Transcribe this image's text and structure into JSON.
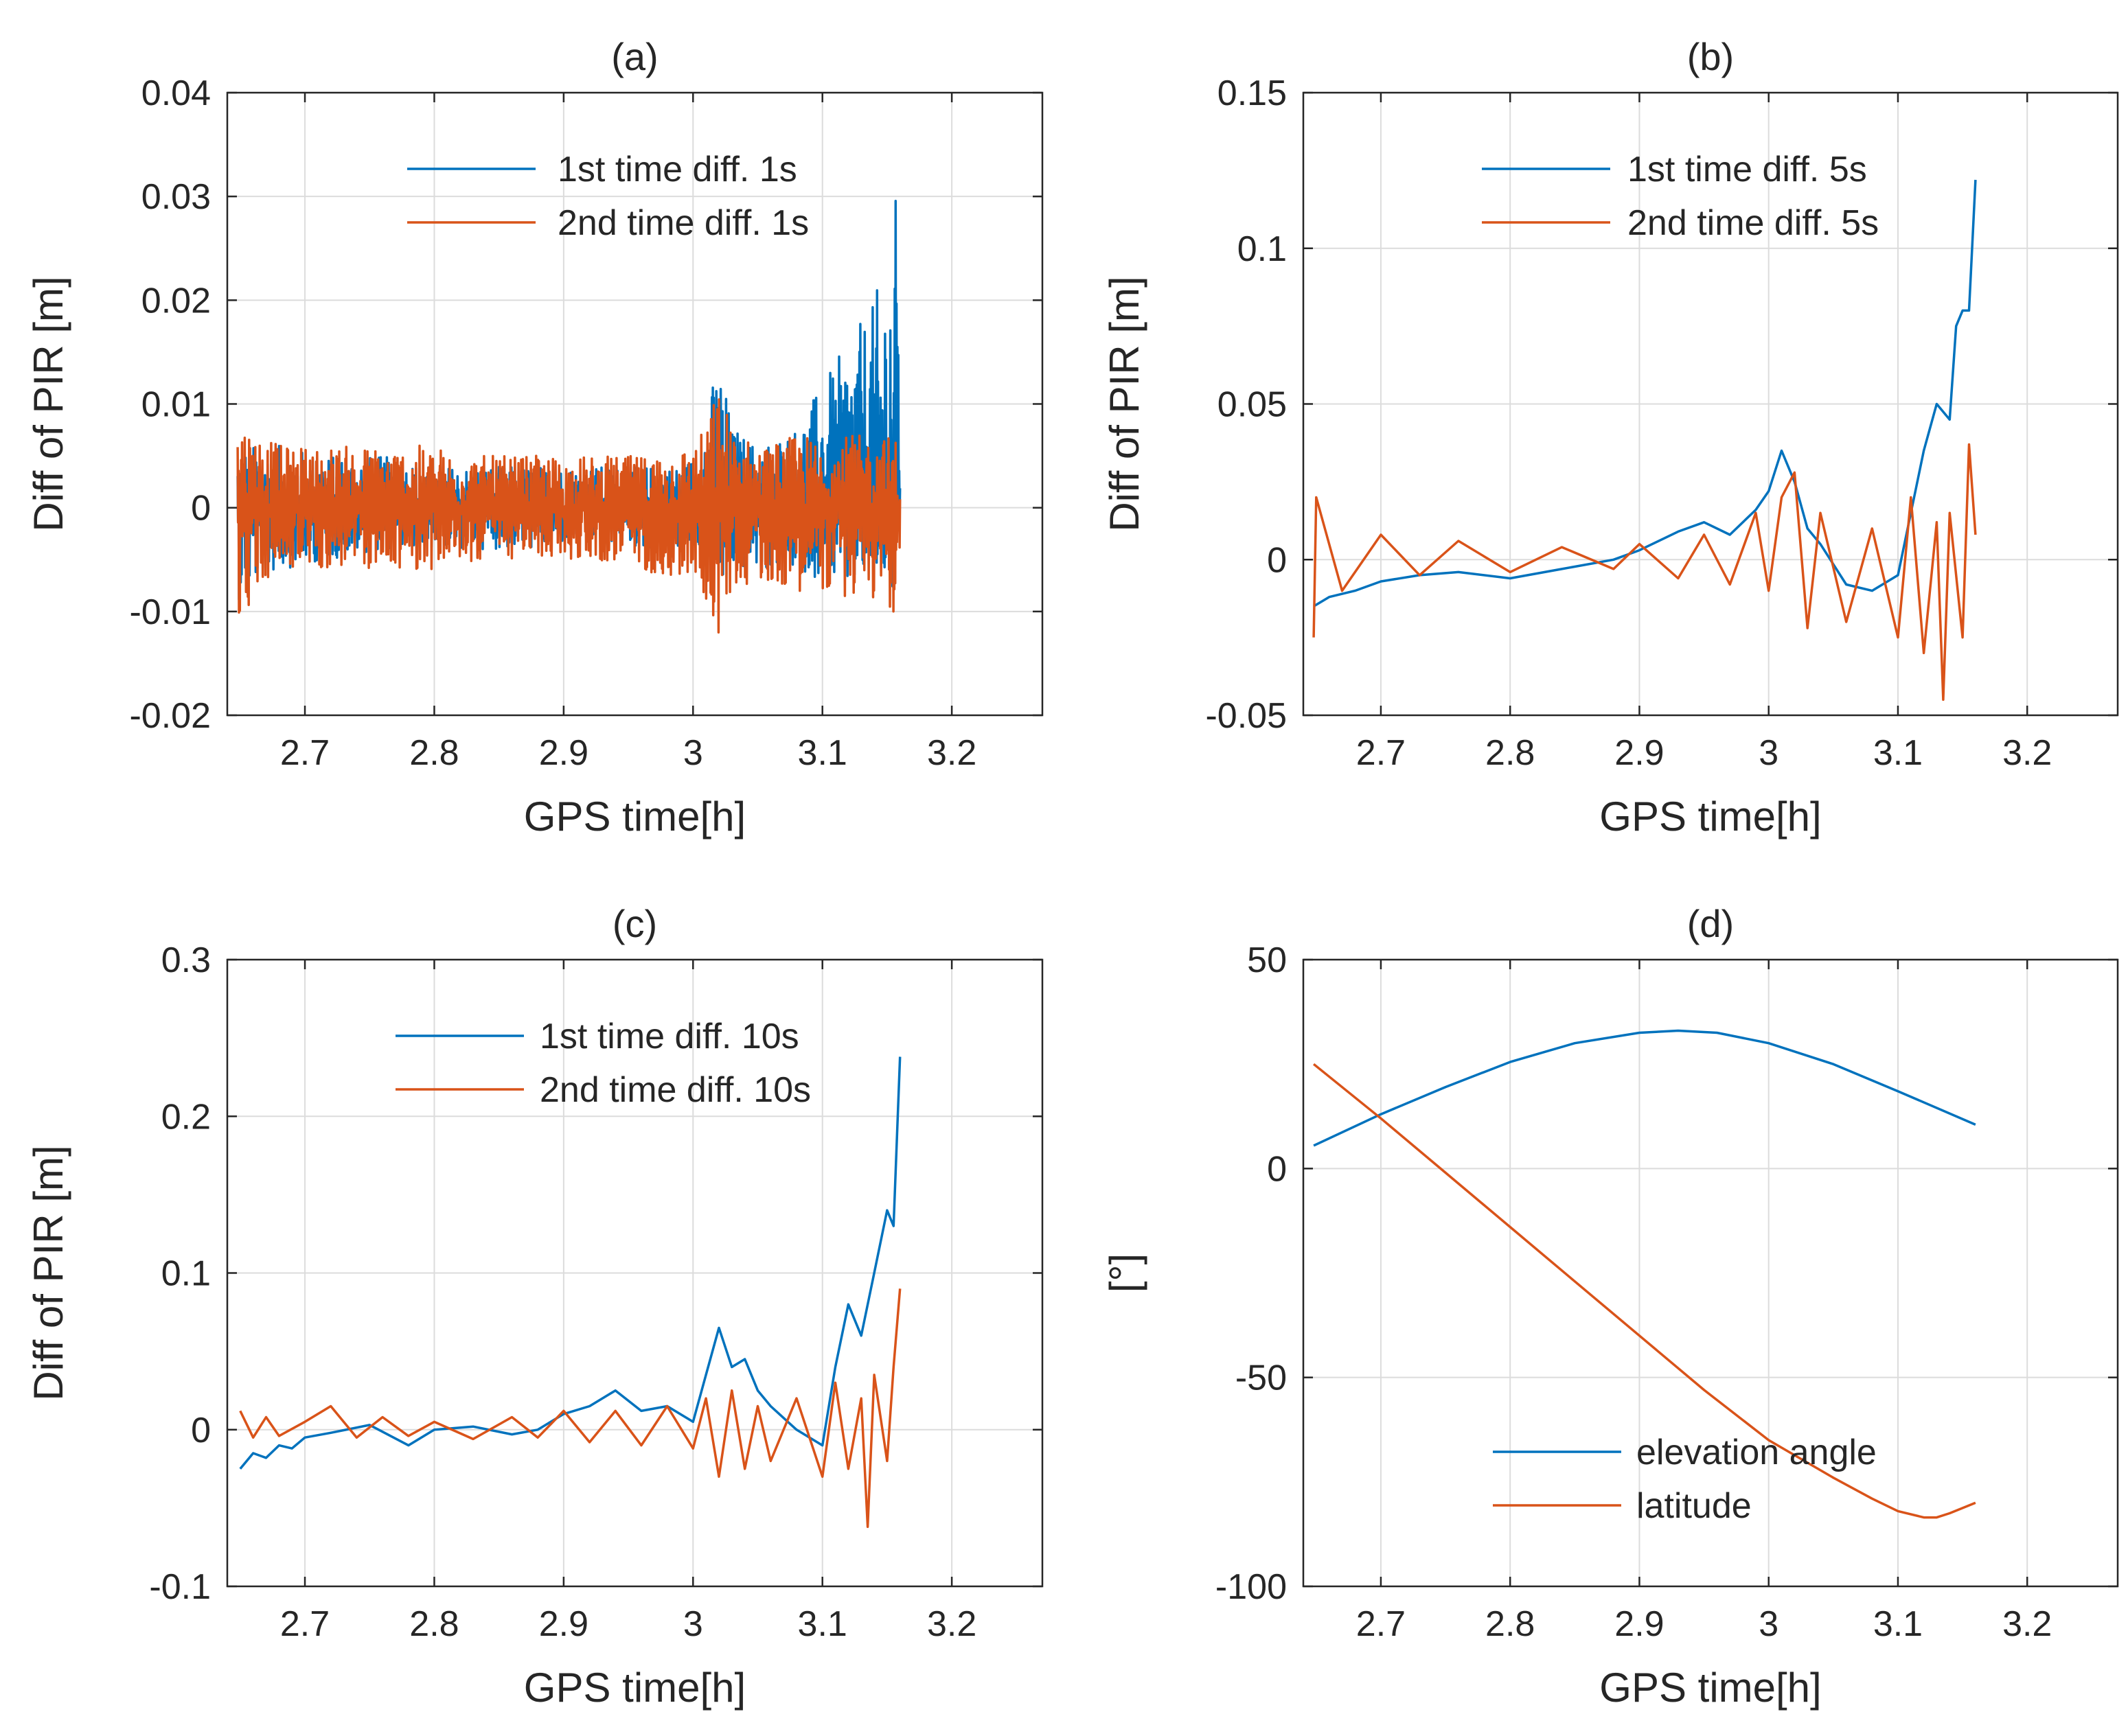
{
  "colors": {
    "series1": "#0072BD",
    "series2": "#D95319",
    "grid": "#DCDCDC",
    "axis": "#262626"
  },
  "chart_data": [
    {
      "type": "line",
      "title": "(a)",
      "xlabel": "GPS time[h]",
      "ylabel": "Diff of PIR [m]",
      "xlim": [
        2.64,
        3.27
      ],
      "ylim": [
        -0.02,
        0.04
      ],
      "xticks": [
        2.7,
        2.8,
        2.9,
        3,
        3.1,
        3.2
      ],
      "xtick_labels": [
        "2.7",
        "2.8",
        "2.9",
        "3",
        "3.1",
        "3.2"
      ],
      "yticks": [
        -0.02,
        -0.01,
        0,
        0.01,
        0.02,
        0.03,
        0.04
      ],
      "ytick_labels": [
        "-0.02",
        "-0.01",
        "0",
        "0.01",
        "0.02",
        "0.03",
        "0.04"
      ],
      "grid": true,
      "legend_position": "top",
      "series": [
        {
          "name": "1st time diff. 1s",
          "x": [
            2.648,
            2.68,
            2.72,
            2.76,
            2.8,
            2.84,
            2.88,
            2.92,
            2.96,
            2.99,
            3.0,
            3.01,
            3.02,
            3.03,
            3.05,
            3.08,
            3.1,
            3.12,
            3.14,
            3.15,
            3.155,
            3.16
          ],
          "min": [
            -0.009,
            -0.006,
            -0.005,
            -0.004,
            -0.004,
            -0.004,
            -0.004,
            -0.003,
            -0.004,
            -0.004,
            -0.004,
            -0.005,
            -0.009,
            -0.006,
            -0.006,
            -0.006,
            -0.007,
            -0.008,
            -0.006,
            -0.007,
            -0.009,
            -0.01
          ],
          "max": [
            0.006,
            0.006,
            0.005,
            0.005,
            0.004,
            0.004,
            0.004,
            0.004,
            0.004,
            0.004,
            0.005,
            0.009,
            0.015,
            0.008,
            0.006,
            0.008,
            0.012,
            0.016,
            0.02,
            0.025,
            0.03,
            0.031
          ]
        },
        {
          "name": "2nd time diff. 1s",
          "x": [
            2.648,
            2.68,
            2.72,
            2.76,
            2.8,
            2.84,
            2.88,
            2.92,
            2.96,
            2.99,
            3.0,
            3.01,
            3.02,
            3.03,
            3.05,
            3.08,
            3.1,
            3.12,
            3.14,
            3.15,
            3.155,
            3.16
          ],
          "min": [
            -0.011,
            -0.006,
            -0.006,
            -0.006,
            -0.006,
            -0.005,
            -0.005,
            -0.005,
            -0.006,
            -0.007,
            -0.007,
            -0.009,
            -0.013,
            -0.008,
            -0.007,
            -0.008,
            -0.008,
            -0.009,
            -0.009,
            -0.009,
            -0.011,
            -0.013
          ],
          "max": [
            0.009,
            0.006,
            0.006,
            0.006,
            0.006,
            0.005,
            0.005,
            0.005,
            0.005,
            0.006,
            0.006,
            0.008,
            0.012,
            0.008,
            0.006,
            0.007,
            0.007,
            0.007,
            0.007,
            0.007,
            0.007,
            0.007
          ]
        }
      ]
    },
    {
      "type": "line",
      "title": "(b)",
      "xlabel": "GPS time[h]",
      "ylabel": "Diff of PIR [m]",
      "xlim": [
        2.64,
        3.27
      ],
      "ylim": [
        -0.05,
        0.15
      ],
      "xticks": [
        2.7,
        2.8,
        2.9,
        3,
        3.1,
        3.2
      ],
      "xtick_labels": [
        "2.7",
        "2.8",
        "2.9",
        "3",
        "3.1",
        "3.2"
      ],
      "yticks": [
        -0.05,
        0,
        0.05,
        0.1,
        0.15
      ],
      "ytick_labels": [
        "-0.05",
        "0",
        "0.05",
        "0.1",
        "0.15"
      ],
      "grid": true,
      "legend_position": "top",
      "series": [
        {
          "name": "1st time diff. 5s",
          "x": [
            2.648,
            2.66,
            2.68,
            2.7,
            2.73,
            2.76,
            2.8,
            2.84,
            2.88,
            2.9,
            2.93,
            2.95,
            2.97,
            2.99,
            3.0,
            3.01,
            3.02,
            3.03,
            3.04,
            3.06,
            3.08,
            3.1,
            3.11,
            3.12,
            3.13,
            3.14,
            3.145,
            3.15,
            3.155,
            3.16
          ],
          "y": [
            -0.015,
            -0.012,
            -0.01,
            -0.007,
            -0.005,
            -0.004,
            -0.006,
            -0.003,
            0.0,
            0.003,
            0.009,
            0.012,
            0.008,
            0.016,
            0.022,
            0.035,
            0.025,
            0.01,
            0.005,
            -0.008,
            -0.01,
            -0.005,
            0.015,
            0.035,
            0.05,
            0.045,
            0.075,
            0.08,
            0.08,
            0.122
          ]
        },
        {
          "name": "2nd time diff. 5s",
          "x": [
            2.648,
            2.65,
            2.67,
            2.7,
            2.73,
            2.76,
            2.8,
            2.84,
            2.88,
            2.9,
            2.93,
            2.95,
            2.97,
            2.99,
            3.0,
            3.01,
            3.02,
            3.03,
            3.04,
            3.06,
            3.08,
            3.1,
            3.11,
            3.12,
            3.13,
            3.135,
            3.14,
            3.15,
            3.155,
            3.16
          ],
          "y": [
            -0.025,
            0.02,
            -0.01,
            0.008,
            -0.005,
            0.006,
            -0.004,
            0.004,
            -0.003,
            0.005,
            -0.006,
            0.008,
            -0.008,
            0.015,
            -0.01,
            0.02,
            0.028,
            -0.022,
            0.015,
            -0.02,
            0.01,
            -0.025,
            0.02,
            -0.03,
            0.012,
            -0.045,
            0.015,
            -0.025,
            0.037,
            0.008
          ]
        }
      ]
    },
    {
      "type": "line",
      "title": "(c)",
      "xlabel": "GPS time[h]",
      "ylabel": "Diff of PIR [m]",
      "xlim": [
        2.64,
        3.27
      ],
      "ylim": [
        -0.1,
        0.3
      ],
      "xticks": [
        2.7,
        2.8,
        2.9,
        3,
        3.1,
        3.2
      ],
      "xtick_labels": [
        "2.7",
        "2.8",
        "2.9",
        "3",
        "3.1",
        "3.2"
      ],
      "yticks": [
        -0.1,
        0,
        0.1,
        0.2,
        0.3
      ],
      "ytick_labels": [
        "-0.1",
        "0",
        "0.1",
        "0.2",
        "0.3"
      ],
      "grid": true,
      "legend_position": "top",
      "series": [
        {
          "name": "1st time diff. 10s",
          "x": [
            2.65,
            2.66,
            2.67,
            2.68,
            2.69,
            2.7,
            2.72,
            2.75,
            2.78,
            2.8,
            2.83,
            2.86,
            2.88,
            2.9,
            2.92,
            2.94,
            2.96,
            2.98,
            3.0,
            3.01,
            3.02,
            3.03,
            3.04,
            3.05,
            3.06,
            3.08,
            3.1,
            3.11,
            3.12,
            3.13,
            3.14,
            3.15,
            3.155,
            3.16
          ],
          "y": [
            -0.025,
            -0.015,
            -0.018,
            -0.01,
            -0.012,
            -0.005,
            -0.002,
            0.003,
            -0.01,
            0.0,
            0.002,
            -0.003,
            0.0,
            0.01,
            0.015,
            0.025,
            0.012,
            0.015,
            0.005,
            0.035,
            0.065,
            0.04,
            0.045,
            0.025,
            0.015,
            0.0,
            -0.01,
            0.04,
            0.08,
            0.06,
            0.1,
            0.14,
            0.13,
            0.238
          ]
        },
        {
          "name": "2nd time diff. 10s",
          "x": [
            2.65,
            2.66,
            2.67,
            2.68,
            2.7,
            2.72,
            2.74,
            2.76,
            2.78,
            2.8,
            2.83,
            2.86,
            2.88,
            2.9,
            2.92,
            2.94,
            2.96,
            2.98,
            3.0,
            3.01,
            3.02,
            3.03,
            3.04,
            3.05,
            3.06,
            3.08,
            3.1,
            3.11,
            3.12,
            3.13,
            3.135,
            3.14,
            3.15,
            3.155,
            3.16
          ],
          "y": [
            0.012,
            -0.005,
            0.008,
            -0.004,
            0.005,
            0.015,
            -0.005,
            0.008,
            -0.004,
            0.005,
            -0.006,
            0.008,
            -0.005,
            0.012,
            -0.008,
            0.012,
            -0.01,
            0.015,
            -0.012,
            0.02,
            -0.03,
            0.025,
            -0.025,
            0.015,
            -0.02,
            0.02,
            -0.03,
            0.03,
            -0.025,
            0.02,
            -0.062,
            0.035,
            -0.02,
            0.04,
            0.09
          ]
        }
      ]
    },
    {
      "type": "line",
      "title": "(d)",
      "xlabel": "GPS time[h]",
      "ylabel": "[°]",
      "xlim": [
        2.64,
        3.27
      ],
      "ylim": [
        -100,
        50
      ],
      "xticks": [
        2.7,
        2.8,
        2.9,
        3,
        3.1,
        3.2
      ],
      "xtick_labels": [
        "2.7",
        "2.8",
        "2.9",
        "3",
        "3.1",
        "3.2"
      ],
      "yticks": [
        -100,
        -50,
        0,
        50
      ],
      "ytick_labels": [
        "-100",
        "-50",
        "0",
        "50"
      ],
      "grid": true,
      "legend_position": "bottom-right",
      "series": [
        {
          "name": "elevation angle",
          "x": [
            2.648,
            2.7,
            2.75,
            2.8,
            2.85,
            2.9,
            2.93,
            2.96,
            3.0,
            3.05,
            3.1,
            3.16
          ],
          "y": [
            5.5,
            13,
            19.5,
            25.5,
            30,
            32.5,
            33,
            32.5,
            30,
            25,
            18.5,
            10.5
          ]
        },
        {
          "name": "latitude",
          "x": [
            2.648,
            2.7,
            2.75,
            2.8,
            2.85,
            2.9,
            2.95,
            3.0,
            3.05,
            3.08,
            3.1,
            3.12,
            3.13,
            3.14,
            3.16
          ],
          "y": [
            25,
            12,
            -1,
            -14,
            -27,
            -40,
            -53,
            -65,
            -74,
            -79,
            -82,
            -83.5,
            -83.5,
            -82.5,
            -80
          ]
        }
      ]
    }
  ]
}
